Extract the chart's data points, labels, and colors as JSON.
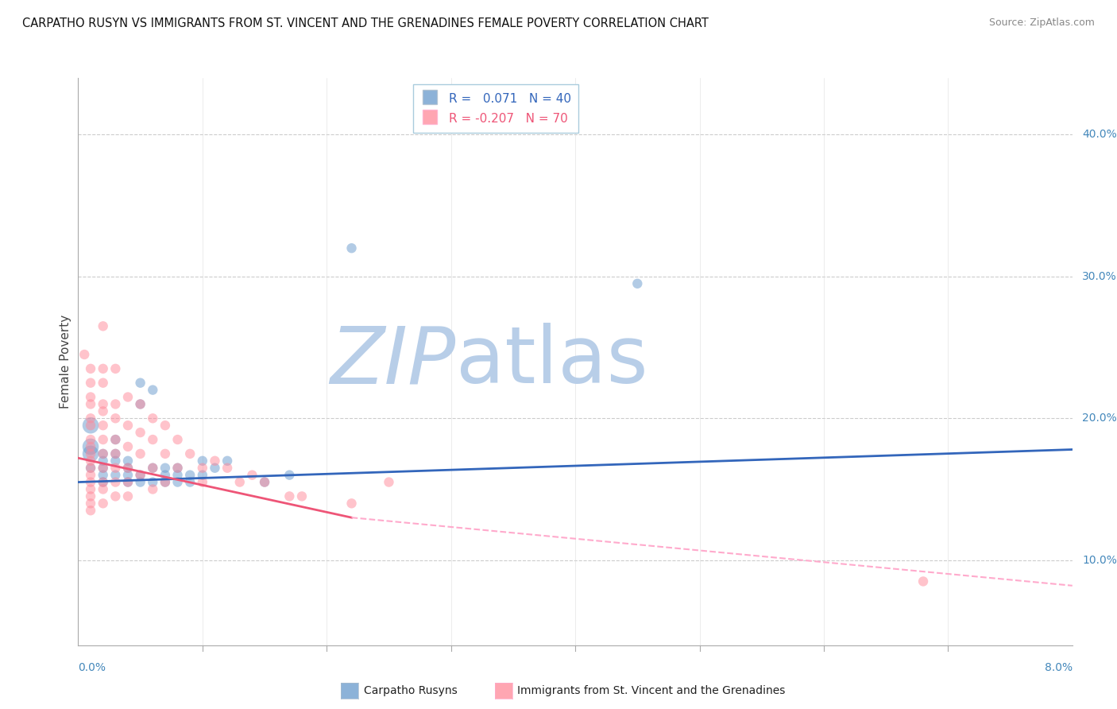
{
  "title": "CARPATHO RUSYN VS IMMIGRANTS FROM ST. VINCENT AND THE GRENADINES FEMALE POVERTY CORRELATION CHART",
  "source": "Source: ZipAtlas.com",
  "ylabel": "Female Poverty",
  "xlim": [
    0.0,
    0.08
  ],
  "ylim": [
    0.04,
    0.44
  ],
  "ytick_positions": [
    0.1,
    0.2,
    0.3,
    0.4
  ],
  "ytick_labels": [
    "10.0%",
    "20.0%",
    "30.0%",
    "40.0%"
  ],
  "blue_color": "#6699CC",
  "pink_color": "#FF8899",
  "blue_line_color": "#3366BB",
  "pink_line_color": "#EE5577",
  "pink_dash_color": "#FFAACC",
  "blue_scatter": [
    [
      0.001,
      0.18
    ],
    [
      0.001,
      0.195
    ],
    [
      0.001,
      0.165
    ],
    [
      0.001,
      0.175
    ],
    [
      0.002,
      0.175
    ],
    [
      0.002,
      0.165
    ],
    [
      0.002,
      0.17
    ],
    [
      0.002,
      0.155
    ],
    [
      0.002,
      0.16
    ],
    [
      0.003,
      0.185
    ],
    [
      0.003,
      0.17
    ],
    [
      0.003,
      0.175
    ],
    [
      0.003,
      0.16
    ],
    [
      0.004,
      0.17
    ],
    [
      0.004,
      0.165
    ],
    [
      0.004,
      0.155
    ],
    [
      0.004,
      0.16
    ],
    [
      0.005,
      0.225
    ],
    [
      0.005,
      0.21
    ],
    [
      0.005,
      0.16
    ],
    [
      0.005,
      0.155
    ],
    [
      0.006,
      0.22
    ],
    [
      0.006,
      0.165
    ],
    [
      0.006,
      0.155
    ],
    [
      0.007,
      0.165
    ],
    [
      0.007,
      0.16
    ],
    [
      0.007,
      0.155
    ],
    [
      0.008,
      0.165
    ],
    [
      0.008,
      0.16
    ],
    [
      0.008,
      0.155
    ],
    [
      0.009,
      0.16
    ],
    [
      0.009,
      0.155
    ],
    [
      0.01,
      0.16
    ],
    [
      0.01,
      0.17
    ],
    [
      0.011,
      0.165
    ],
    [
      0.012,
      0.17
    ],
    [
      0.015,
      0.155
    ],
    [
      0.017,
      0.16
    ],
    [
      0.022,
      0.32
    ],
    [
      0.045,
      0.295
    ]
  ],
  "pink_scatter": [
    [
      0.0005,
      0.245
    ],
    [
      0.001,
      0.235
    ],
    [
      0.001,
      0.225
    ],
    [
      0.001,
      0.215
    ],
    [
      0.001,
      0.21
    ],
    [
      0.001,
      0.2
    ],
    [
      0.001,
      0.195
    ],
    [
      0.001,
      0.185
    ],
    [
      0.001,
      0.18
    ],
    [
      0.001,
      0.175
    ],
    [
      0.001,
      0.17
    ],
    [
      0.001,
      0.165
    ],
    [
      0.001,
      0.16
    ],
    [
      0.001,
      0.155
    ],
    [
      0.001,
      0.15
    ],
    [
      0.001,
      0.145
    ],
    [
      0.001,
      0.14
    ],
    [
      0.001,
      0.135
    ],
    [
      0.002,
      0.265
    ],
    [
      0.002,
      0.235
    ],
    [
      0.002,
      0.225
    ],
    [
      0.002,
      0.21
    ],
    [
      0.002,
      0.205
    ],
    [
      0.002,
      0.195
    ],
    [
      0.002,
      0.185
    ],
    [
      0.002,
      0.175
    ],
    [
      0.002,
      0.165
    ],
    [
      0.002,
      0.155
    ],
    [
      0.002,
      0.15
    ],
    [
      0.002,
      0.14
    ],
    [
      0.003,
      0.235
    ],
    [
      0.003,
      0.21
    ],
    [
      0.003,
      0.2
    ],
    [
      0.003,
      0.185
    ],
    [
      0.003,
      0.175
    ],
    [
      0.003,
      0.165
    ],
    [
      0.003,
      0.155
    ],
    [
      0.003,
      0.145
    ],
    [
      0.004,
      0.215
    ],
    [
      0.004,
      0.195
    ],
    [
      0.004,
      0.18
    ],
    [
      0.004,
      0.165
    ],
    [
      0.004,
      0.155
    ],
    [
      0.004,
      0.145
    ],
    [
      0.005,
      0.21
    ],
    [
      0.005,
      0.19
    ],
    [
      0.005,
      0.175
    ],
    [
      0.005,
      0.16
    ],
    [
      0.006,
      0.2
    ],
    [
      0.006,
      0.185
    ],
    [
      0.006,
      0.165
    ],
    [
      0.006,
      0.15
    ],
    [
      0.007,
      0.195
    ],
    [
      0.007,
      0.175
    ],
    [
      0.007,
      0.155
    ],
    [
      0.008,
      0.185
    ],
    [
      0.008,
      0.165
    ],
    [
      0.009,
      0.175
    ],
    [
      0.01,
      0.165
    ],
    [
      0.01,
      0.155
    ],
    [
      0.011,
      0.17
    ],
    [
      0.012,
      0.165
    ],
    [
      0.013,
      0.155
    ],
    [
      0.014,
      0.16
    ],
    [
      0.015,
      0.155
    ],
    [
      0.017,
      0.145
    ],
    [
      0.018,
      0.145
    ],
    [
      0.022,
      0.14
    ],
    [
      0.025,
      0.155
    ],
    [
      0.068,
      0.085
    ]
  ],
  "blue_line": [
    [
      0.0,
      0.155
    ],
    [
      0.08,
      0.178
    ]
  ],
  "pink_line_solid": [
    [
      0.0,
      0.172
    ],
    [
      0.022,
      0.13
    ]
  ],
  "pink_line_dash": [
    [
      0.022,
      0.13
    ],
    [
      0.08,
      0.082
    ]
  ],
  "bottom_legend_1": "Carpatho Rusyns",
  "bottom_legend_2": "Immigrants from St. Vincent and the Grenadines",
  "legend_line1": "R =   0.071   N = 40",
  "legend_line2": "R = -0.207   N = 70"
}
